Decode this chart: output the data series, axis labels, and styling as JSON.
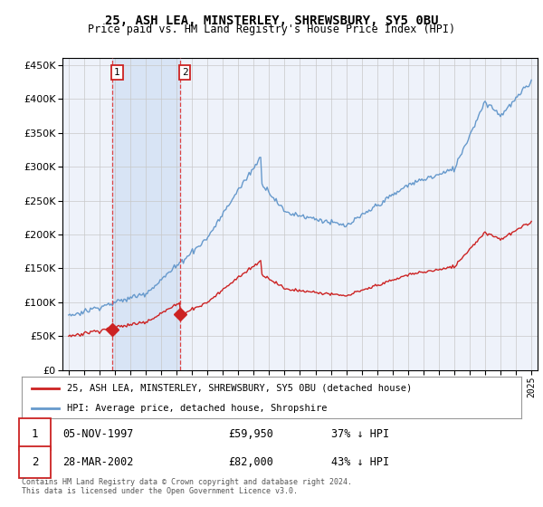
{
  "title": "25, ASH LEA, MINSTERLEY, SHREWSBURY, SY5 0BU",
  "subtitle": "Price paid vs. HM Land Registry's House Price Index (HPI)",
  "ylim": [
    0,
    460000
  ],
  "yticks": [
    0,
    50000,
    100000,
    150000,
    200000,
    250000,
    300000,
    350000,
    400000,
    450000
  ],
  "ytick_labels": [
    "£0",
    "£50K",
    "£100K",
    "£150K",
    "£200K",
    "£250K",
    "£300K",
    "£350K",
    "£400K",
    "£450K"
  ],
  "xlim_start": 1994.6,
  "xlim_end": 2025.4,
  "hpi_color": "#6699cc",
  "price_color": "#cc2222",
  "marker1_date": 1997.846,
  "marker1_price": 59950,
  "marker1_label": "05-NOV-1997",
  "marker1_amount": "£59,950",
  "marker1_pct": "37% ↓ HPI",
  "marker2_date": 2002.24,
  "marker2_price": 82000,
  "marker2_label": "28-MAR-2002",
  "marker2_amount": "£82,000",
  "marker2_pct": "43% ↓ HPI",
  "legend_line1": "25, ASH LEA, MINSTERLEY, SHREWSBURY, SY5 0BU (detached house)",
  "legend_line2": "HPI: Average price, detached house, Shropshire",
  "footnote": "Contains HM Land Registry data © Crown copyright and database right 2024.\nThis data is licensed under the Open Government Licence v3.0.",
  "background_color": "#eef2fa",
  "shaded_region_color": "#d8e4f5",
  "vline_color": "#dd4444",
  "grid_color": "#c8c8c8"
}
